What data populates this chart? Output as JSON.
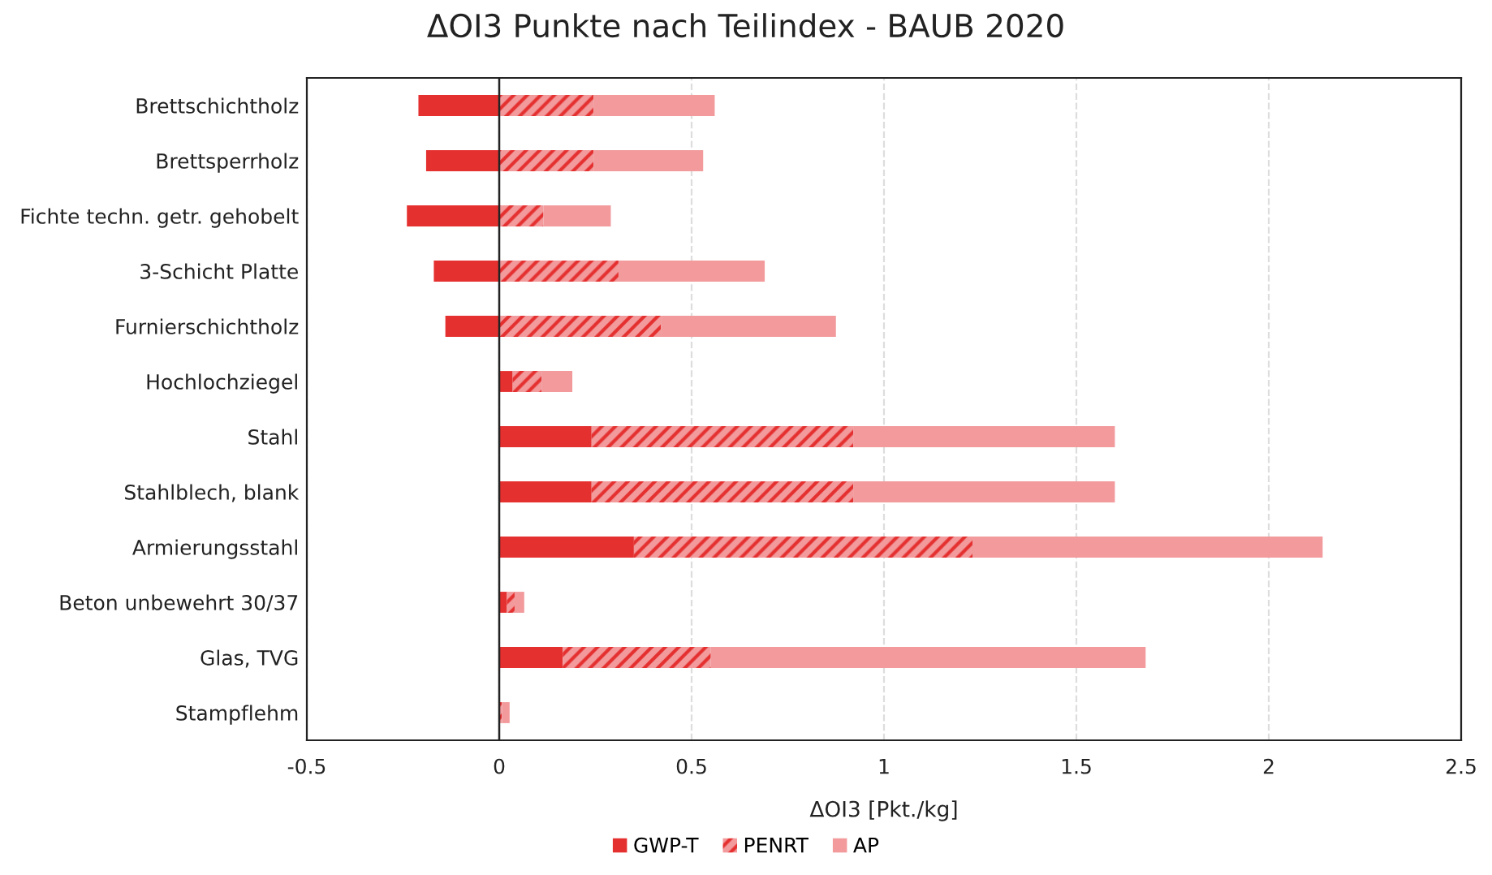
{
  "chart_data": {
    "type": "bar",
    "orientation": "horizontal",
    "stacked": true,
    "title": "ΔOI3 Punkte nach Teilindex - BAUB 2020",
    "xlabel": "ΔOI3 [Pkt./kg]",
    "categories": [
      "Brettschichtholz",
      "Brettsperrholz",
      "Fichte techn. getr. gehobelt",
      "3-Schicht Platte",
      "Furnierschichtholz",
      "Hochlochziegel",
      "Stahl",
      "Stahlblech, blank",
      "Armierungsstahl",
      "Beton unbewehrt 30/37",
      "Glas, TVG",
      "Stampflehm"
    ],
    "series": [
      {
        "name": "GWP-T",
        "color": "#e53030",
        "values": [
          -0.21,
          -0.19,
          -0.24,
          -0.17,
          -0.14,
          0.035,
          0.24,
          0.24,
          0.35,
          0.02,
          0.165,
          null
        ]
      },
      {
        "name": "PENRT",
        "color": "#f29a9c",
        "values": [
          0.245,
          0.245,
          0.115,
          0.31,
          0.42,
          0.075,
          0.68,
          0.68,
          0.88,
          0.02,
          0.385,
          0.007
        ]
      },
      {
        "name": "AP",
        "color": "#f29a9c",
        "values": [
          0.315,
          0.285,
          0.175,
          0.38,
          0.455,
          0.08,
          0.68,
          0.68,
          0.91,
          0.025,
          1.13,
          0.02
        ]
      }
    ],
    "xlim": [
      -0.5,
      2.5
    ],
    "xticks": [
      -0.5,
      0,
      0.5,
      1,
      1.5,
      2,
      2.5
    ],
    "grid": "x",
    "legend": "bottom"
  }
}
